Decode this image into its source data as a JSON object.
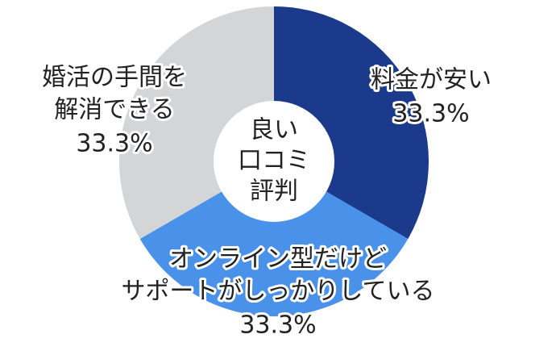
{
  "chart_data": {
    "type": "donut",
    "center_label": [
      "良い",
      "口コミ",
      "評判"
    ],
    "categories": [
      [
        "料金が安い"
      ],
      [
        "オンライン型だけど",
        "サポートがしっかりしている"
      ],
      [
        "婚活の手間を",
        "解消できる"
      ]
    ],
    "values": [
      33.3,
      33.3,
      33.3
    ],
    "value_labels": [
      "33.3%",
      "33.3%",
      "33.3%"
    ],
    "colors": [
      "#1b3a8c",
      "#4a91ea",
      "#d4d5d7"
    ]
  }
}
